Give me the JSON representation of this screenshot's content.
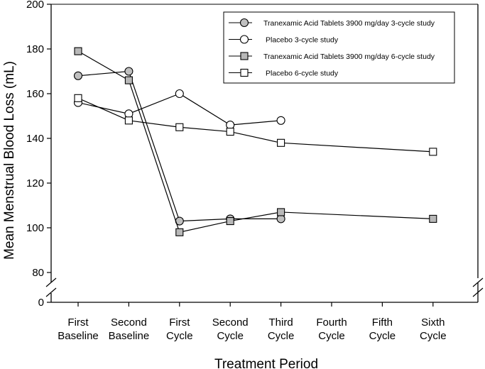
{
  "chart_data": {
    "type": "line",
    "xlabel": "Treatment Period",
    "ylabel": "Mean Menstrual Blood Loss (mL)",
    "categories": [
      [
        "First",
        "Baseline"
      ],
      [
        "Second",
        "Baseline"
      ],
      [
        "First",
        "Cycle"
      ],
      [
        "Second",
        "Cycle"
      ],
      [
        "Third",
        "Cycle"
      ],
      [
        "Fourth",
        "Cycle"
      ],
      [
        "Fifth",
        "Cycle"
      ],
      [
        "Sixth",
        "Cycle"
      ]
    ],
    "y_ticks": [
      0,
      80,
      100,
      120,
      140,
      160,
      180,
      200
    ],
    "ylim": [
      0,
      200
    ],
    "y_axis_break": [
      0,
      80
    ],
    "legend_position": "top-right",
    "series": [
      {
        "name": "Tranexamic Acid Tablets 3900 mg/day 3-cycle study",
        "marker": "circle",
        "fill": "#c0c0c0",
        "values": [
          168,
          170,
          103,
          104,
          104,
          null,
          null,
          null
        ]
      },
      {
        "name": "Placebo 3-cycle study",
        "marker": "circle",
        "fill": "#ffffff",
        "values": [
          156,
          151,
          160,
          146,
          148,
          null,
          null,
          null
        ]
      },
      {
        "name": "Tranexamic Acid Tablets 3900 mg/day 6-cycle study",
        "marker": "square",
        "fill": "#b8b8b8",
        "values": [
          179,
          166,
          98,
          103,
          107,
          null,
          null,
          104
        ]
      },
      {
        "name": "Placebo 6-cycle study",
        "marker": "square",
        "fill": "#ffffff",
        "values": [
          158,
          148,
          145,
          143,
          138,
          null,
          null,
          134
        ]
      }
    ]
  }
}
